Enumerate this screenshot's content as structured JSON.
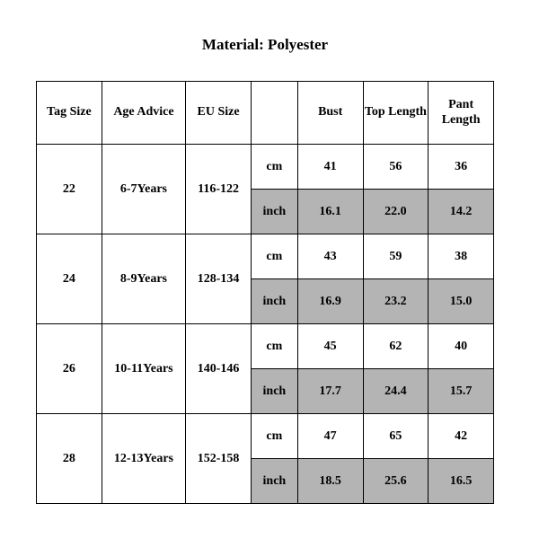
{
  "title": "Material: Polyester",
  "table": {
    "background_color": "#ffffff",
    "shade_color": "#b5b4b4",
    "border_color": "#000000",
    "font_family": "Times New Roman",
    "header_fontsize": 14,
    "cell_fontsize": 14,
    "columns": [
      "Tag Size",
      "Age Advice",
      "EU Size",
      "",
      "Bust",
      "Top Length",
      "Pant Length"
    ],
    "unit_labels": {
      "cm": "cm",
      "inch": "inch"
    },
    "rows": [
      {
        "tag_size": "22",
        "age_advice": "6-7Years",
        "eu_size": "116-122",
        "cm": {
          "bust": "41",
          "top_length": "56",
          "pant_length": "36"
        },
        "inch": {
          "bust": "16.1",
          "top_length": "22.0",
          "pant_length": "14.2"
        }
      },
      {
        "tag_size": "24",
        "age_advice": "8-9Years",
        "eu_size": "128-134",
        "cm": {
          "bust": "43",
          "top_length": "59",
          "pant_length": "38"
        },
        "inch": {
          "bust": "16.9",
          "top_length": "23.2",
          "pant_length": "15.0"
        }
      },
      {
        "tag_size": "26",
        "age_advice": "10-11Years",
        "eu_size": "140-146",
        "cm": {
          "bust": "45",
          "top_length": "62",
          "pant_length": "40"
        },
        "inch": {
          "bust": "17.7",
          "top_length": "24.4",
          "pant_length": "15.7"
        }
      },
      {
        "tag_size": "28",
        "age_advice": "12-13Years",
        "eu_size": "152-158",
        "cm": {
          "bust": "47",
          "top_length": "65",
          "pant_length": "42"
        },
        "inch": {
          "bust": "18.5",
          "top_length": "25.6",
          "pant_length": "16.5"
        }
      }
    ]
  }
}
